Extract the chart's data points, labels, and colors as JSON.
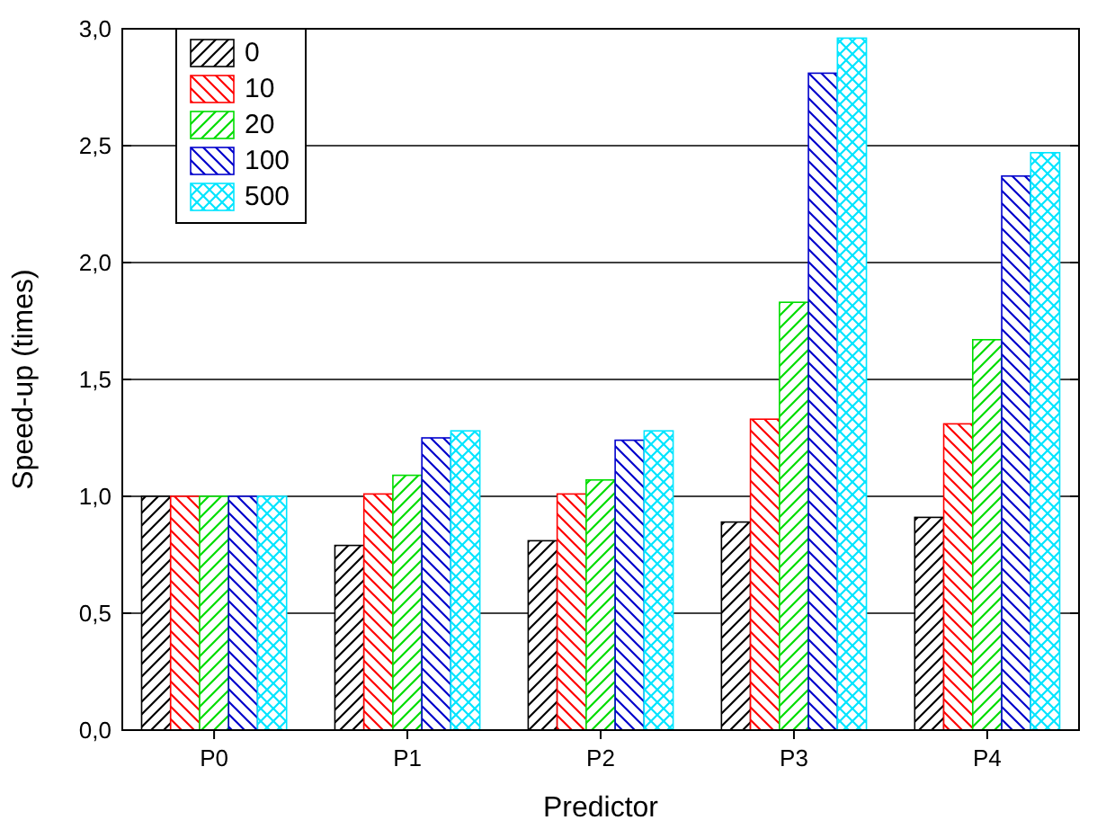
{
  "chart_data": {
    "type": "bar",
    "xlabel": "Predictor",
    "ylabel": "Speed-up (times)",
    "categories": [
      "P0",
      "P1",
      "P2",
      "P3",
      "P4"
    ],
    "series": [
      {
        "name": "0",
        "color": "#000000",
        "values": [
          1.0,
          0.79,
          0.81,
          0.89,
          0.91
        ]
      },
      {
        "name": "10",
        "color": "#ff0000",
        "values": [
          1.0,
          1.01,
          1.01,
          1.33,
          1.31
        ]
      },
      {
        "name": "20",
        "color": "#00dd00",
        "values": [
          1.0,
          1.09,
          1.07,
          1.83,
          1.67
        ]
      },
      {
        "name": "100",
        "color": "#0000cc",
        "values": [
          1.0,
          1.25,
          1.24,
          2.81,
          2.37
        ]
      },
      {
        "name": "500",
        "color": "#00e5ff",
        "values": [
          1.0,
          1.28,
          1.28,
          2.96,
          2.47
        ]
      }
    ],
    "ylim": [
      0,
      3
    ],
    "yticks": [
      {
        "value": 0,
        "label": "0,0"
      },
      {
        "value": 0.5,
        "label": "0,5"
      },
      {
        "value": 1,
        "label": "1,0"
      },
      {
        "value": 1.5,
        "label": "1,5"
      },
      {
        "value": 2,
        "label": "2,0"
      },
      {
        "value": 2.5,
        "label": "2,5"
      },
      {
        "value": 3,
        "label": "3,0"
      }
    ],
    "grid": "y",
    "legend": "top left"
  }
}
